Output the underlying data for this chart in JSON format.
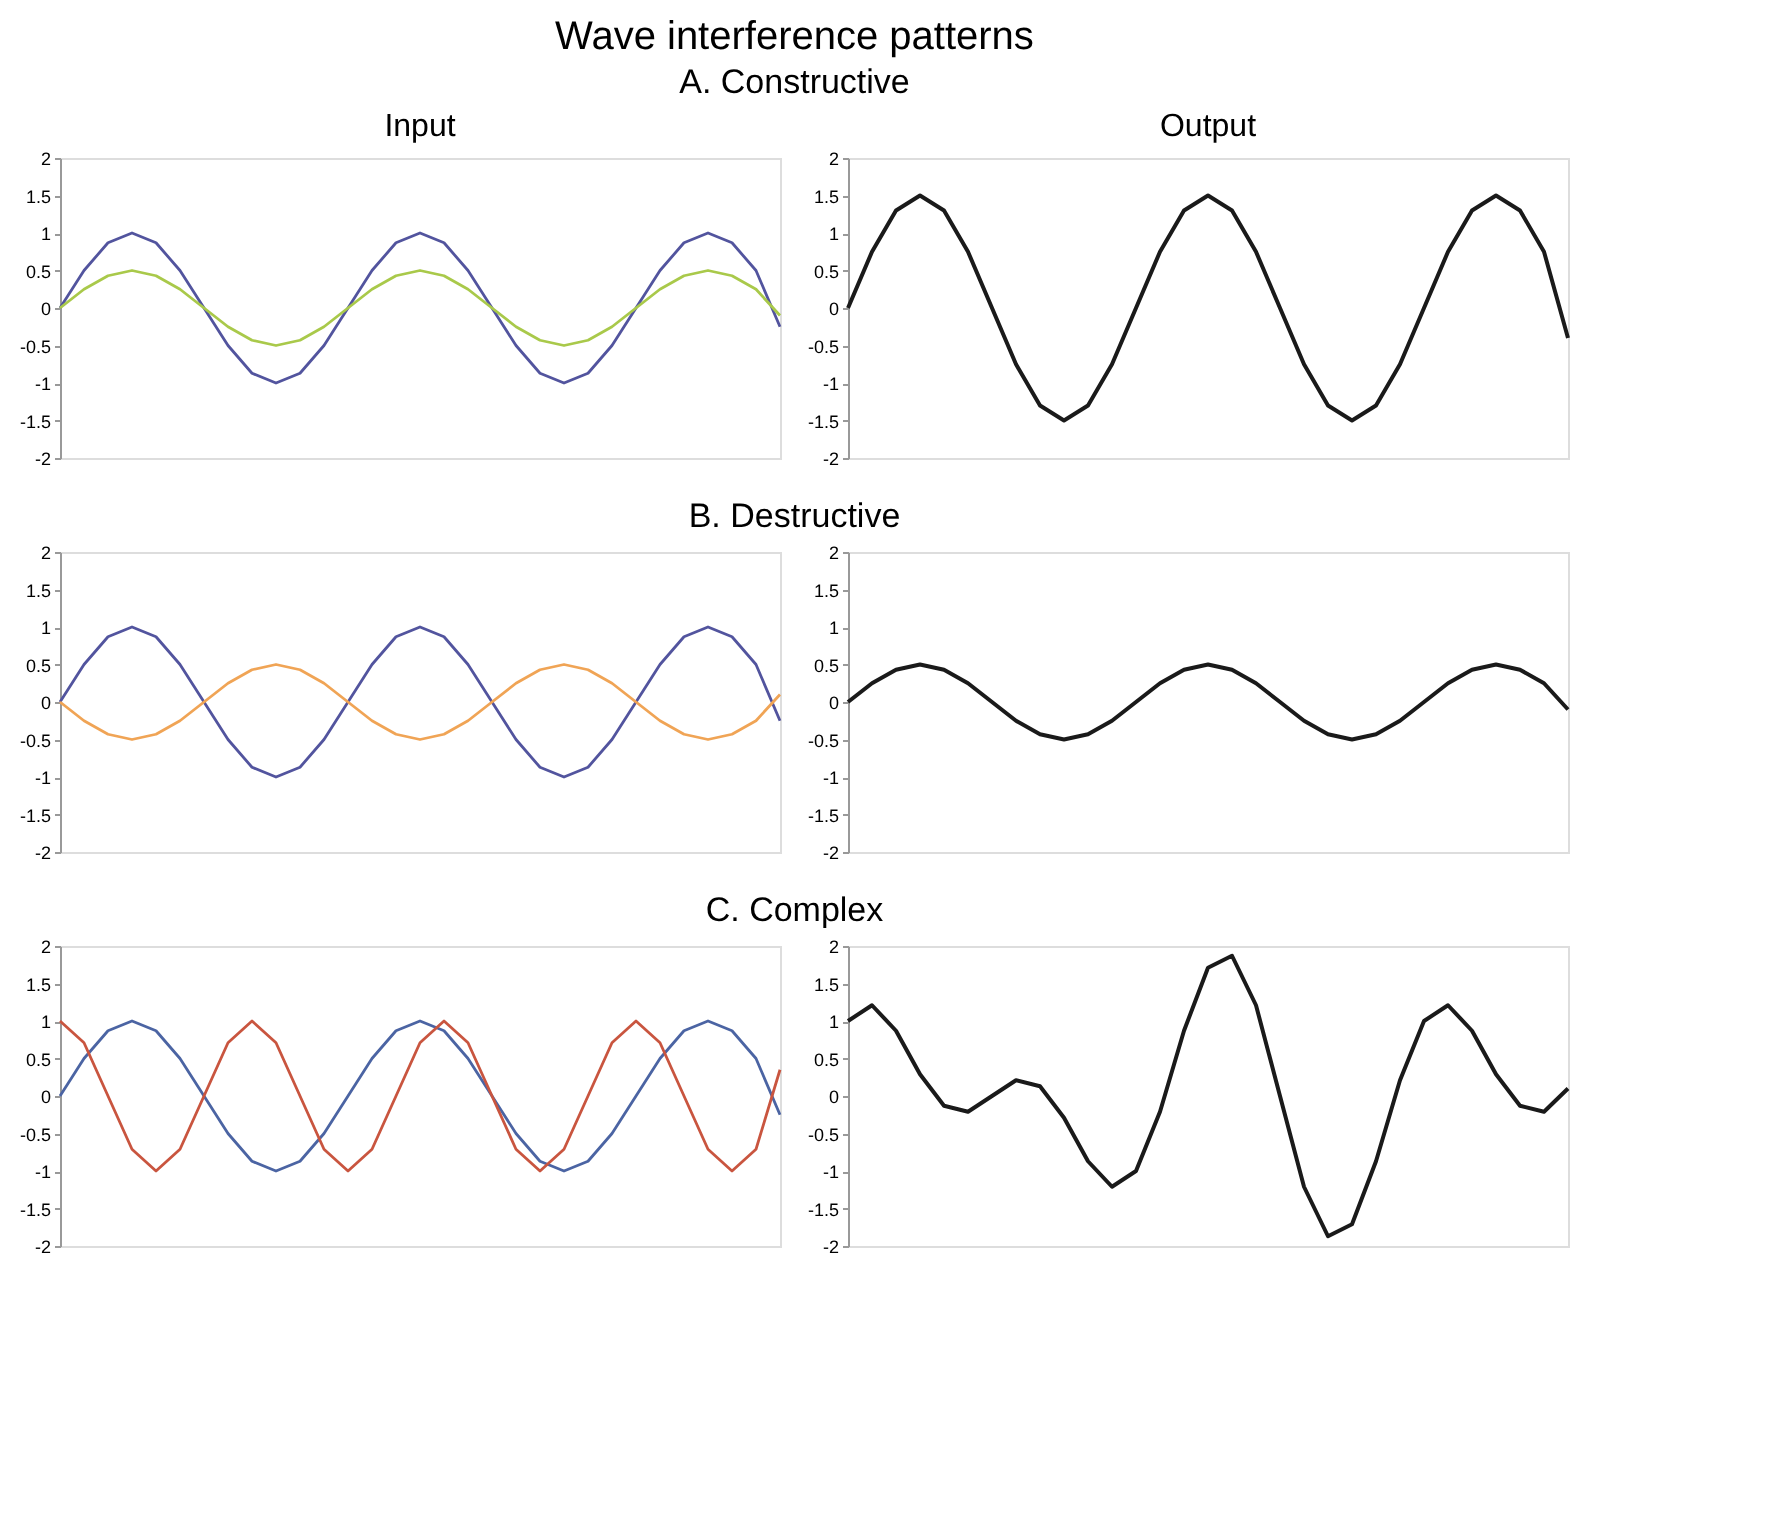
{
  "chart_data": [
    {
      "type": "line",
      "title": "Input",
      "categories": [
        null,
        null,
        null,
        null,
        null,
        null,
        null,
        null,
        null,
        null,
        null,
        null,
        null,
        null,
        null,
        null,
        null,
        null,
        null,
        null,
        null,
        null,
        null,
        null,
        null,
        null,
        null,
        null,
        null,
        null,
        null
      ],
      "ylim": [
        -2,
        2
      ],
      "yticks": [
        -2,
        -1.5,
        -1,
        -0.5,
        0,
        0.5,
        1,
        1.5,
        2
      ],
      "tick_labels": "y",
      "grid": false,
      "series": [
        {
          "color": "#52549e",
          "values": [
            0,
            0.5,
            0.87,
            1,
            0.87,
            0.5,
            0,
            -0.5,
            -0.87,
            -1,
            -0.87,
            -0.5,
            0,
            0.5,
            0.87,
            1,
            0.87,
            0.5,
            0,
            -0.5,
            -0.87,
            -1,
            -0.87,
            -0.5,
            0,
            0.5,
            0.87,
            1,
            0.87,
            0.5,
            -0.25
          ]
        },
        {
          "color": "#a9c94a",
          "values": [
            0,
            0.25,
            0.43,
            0.5,
            0.43,
            0.25,
            0,
            -0.25,
            -0.43,
            -0.5,
            -0.43,
            -0.25,
            0,
            0.25,
            0.43,
            0.5,
            0.43,
            0.25,
            0,
            -0.25,
            -0.43,
            -0.5,
            -0.43,
            -0.25,
            0,
            0.25,
            0.43,
            0.5,
            0.43,
            0.25,
            -0.1
          ]
        }
      ]
    },
    {
      "type": "line",
      "title": "Output",
      "categories": [
        null,
        null,
        null,
        null,
        null,
        null,
        null,
        null,
        null,
        null,
        null,
        null,
        null,
        null,
        null,
        null,
        null,
        null,
        null,
        null,
        null,
        null,
        null,
        null,
        null,
        null,
        null,
        null,
        null,
        null,
        null
      ],
      "ylim": [
        -2,
        2
      ],
      "yticks": [
        -2,
        -1.5,
        -1,
        -0.5,
        0,
        0.5,
        1,
        1.5,
        2
      ],
      "tick_labels": "y",
      "grid": false,
      "series": [
        {
          "color": "#1a1a1a",
          "values": [
            0,
            0.75,
            1.3,
            1.5,
            1.3,
            0.75,
            0,
            -0.75,
            -1.3,
            -1.5,
            -1.3,
            -0.75,
            0,
            0.75,
            1.3,
            1.5,
            1.3,
            0.75,
            0,
            -0.75,
            -1.3,
            -1.5,
            -1.3,
            -0.75,
            0,
            0.75,
            1.3,
            1.5,
            1.3,
            0.75,
            -0.4
          ]
        }
      ]
    },
    {
      "type": "line",
      "categories": [
        null,
        null,
        null,
        null,
        null,
        null,
        null,
        null,
        null,
        null,
        null,
        null,
        null,
        null,
        null,
        null,
        null,
        null,
        null,
        null,
        null,
        null,
        null,
        null,
        null,
        null,
        null,
        null,
        null,
        null,
        null
      ],
      "ylim": [
        -2,
        2
      ],
      "yticks": [
        -2,
        -1.5,
        -1,
        -0.5,
        0,
        0.5,
        1,
        1.5,
        2
      ],
      "tick_labels": "y",
      "grid": false,
      "series": [
        {
          "color": "#52549e",
          "values": [
            0,
            0.5,
            0.87,
            1,
            0.87,
            0.5,
            0,
            -0.5,
            -0.87,
            -1,
            -0.87,
            -0.5,
            0,
            0.5,
            0.87,
            1,
            0.87,
            0.5,
            0,
            -0.5,
            -0.87,
            -1,
            -0.87,
            -0.5,
            0,
            0.5,
            0.87,
            1,
            0.87,
            0.5,
            -0.25
          ]
        },
        {
          "color": "#f0a455",
          "values": [
            0,
            -0.25,
            -0.43,
            -0.5,
            -0.43,
            -0.25,
            0,
            0.25,
            0.43,
            0.5,
            0.43,
            0.25,
            0,
            -0.25,
            -0.43,
            -0.5,
            -0.43,
            -0.25,
            0,
            0.25,
            0.43,
            0.5,
            0.43,
            0.25,
            0,
            -0.25,
            -0.43,
            -0.5,
            -0.43,
            -0.25,
            0.1
          ]
        }
      ]
    },
    {
      "type": "line",
      "categories": [
        null,
        null,
        null,
        null,
        null,
        null,
        null,
        null,
        null,
        null,
        null,
        null,
        null,
        null,
        null,
        null,
        null,
        null,
        null,
        null,
        null,
        null,
        null,
        null,
        null,
        null,
        null,
        null,
        null,
        null,
        null
      ],
      "ylim": [
        -2,
        2
      ],
      "yticks": [
        -2,
        -1.5,
        -1,
        -0.5,
        0,
        0.5,
        1,
        1.5,
        2
      ],
      "tick_labels": "y",
      "grid": false,
      "series": [
        {
          "color": "#1a1a1a",
          "values": [
            0,
            0.25,
            0.43,
            0.5,
            0.43,
            0.25,
            0,
            -0.25,
            -0.43,
            -0.5,
            -0.43,
            -0.25,
            0,
            0.25,
            0.43,
            0.5,
            0.43,
            0.25,
            0,
            -0.25,
            -0.43,
            -0.5,
            -0.43,
            -0.25,
            0,
            0.25,
            0.43,
            0.5,
            0.43,
            0.25,
            -0.1
          ]
        }
      ]
    },
    {
      "type": "line",
      "categories": [
        null,
        null,
        null,
        null,
        null,
        null,
        null,
        null,
        null,
        null,
        null,
        null,
        null,
        null,
        null,
        null,
        null,
        null,
        null,
        null,
        null,
        null,
        null,
        null,
        null,
        null,
        null,
        null,
        null,
        null,
        null
      ],
      "ylim": [
        -2,
        2
      ],
      "yticks": [
        -2,
        -1.5,
        -1,
        -0.5,
        0,
        0.5,
        1,
        1.5,
        2
      ],
      "tick_labels": "y",
      "grid": false,
      "series": [
        {
          "color": "#4b64a3",
          "values": [
            0,
            0.5,
            0.87,
            1,
            0.87,
            0.5,
            0,
            -0.5,
            -0.87,
            -1,
            -0.87,
            -0.5,
            0,
            0.5,
            0.87,
            1,
            0.87,
            0.5,
            0,
            -0.5,
            -0.87,
            -1,
            -0.87,
            -0.5,
            0,
            0.5,
            0.87,
            1,
            0.87,
            0.5,
            -0.25
          ]
        },
        {
          "color": "#c9553f",
          "values": [
            1,
            0.71,
            0,
            -0.71,
            -1,
            -0.71,
            0,
            0.71,
            1,
            0.71,
            0,
            -0.71,
            -1,
            -0.71,
            0,
            0.71,
            1,
            0.71,
            0,
            -0.71,
            -1,
            -0.71,
            0,
            0.71,
            1,
            0.71,
            0,
            -0.71,
            -1,
            -0.71,
            0.35
          ]
        }
      ]
    },
    {
      "type": "line",
      "categories": [
        null,
        null,
        null,
        null,
        null,
        null,
        null,
        null,
        null,
        null,
        null,
        null,
        null,
        null,
        null,
        null,
        null,
        null,
        null,
        null,
        null,
        null,
        null,
        null,
        null,
        null,
        null,
        null,
        null,
        null,
        null
      ],
      "ylim": [
        -2,
        2
      ],
      "yticks": [
        -2,
        -1.5,
        -1,
        -0.5,
        0,
        0.5,
        1,
        1.5,
        2
      ],
      "tick_labels": "y",
      "grid": false,
      "series": [
        {
          "color": "#1a1a1a",
          "values": [
            1,
            1.21,
            0.87,
            0.29,
            -0.13,
            -0.21,
            0,
            0.21,
            0.13,
            -0.29,
            -0.87,
            -1.21,
            -1,
            -0.21,
            0.87,
            1.71,
            1.87,
            1.21,
            0,
            -1.21,
            -1.87,
            -1.71,
            -0.87,
            0.21,
            1,
            1.21,
            0.87,
            0.29,
            -0.13,
            -0.21,
            0.1
          ]
        }
      ]
    },
    {
      "type": "other",
      "title": "Wave interference patterns",
      "annotations": [
        "A. Constructive",
        "B. Destructive",
        "C. Complex"
      ]
    }
  ]
}
